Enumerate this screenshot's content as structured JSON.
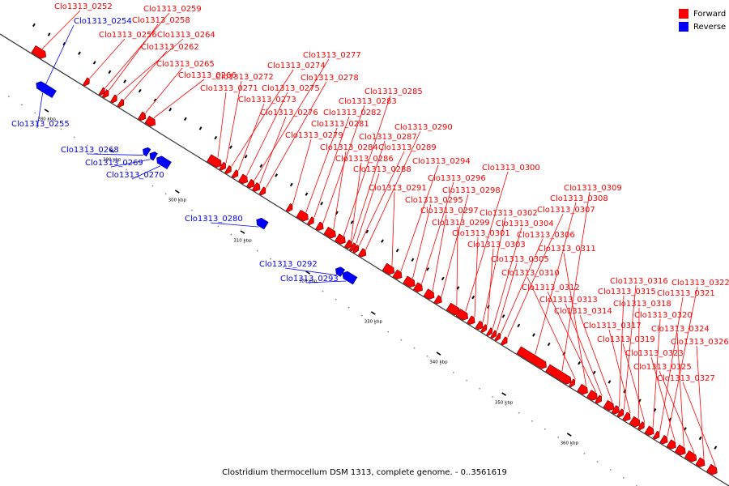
{
  "legend": {
    "forward": {
      "label": "Forward",
      "color": "#ff0000"
    },
    "reverse": {
      "label": "Reverse",
      "color": "#0000ff"
    }
  },
  "caption": "Clostridium thermocellum DSM 1313, complete genome. - 0..3561619",
  "axis": {
    "unit": "kbp",
    "ticks": [
      {
        "kbp": 280,
        "label": "280 kbp"
      },
      {
        "kbp": 290,
        "label": "290 kbp"
      },
      {
        "kbp": 300,
        "label": "300 kbp"
      },
      {
        "kbp": 310,
        "label": "310 kbp"
      },
      {
        "kbp": 320,
        "label": "320 kbp"
      },
      {
        "kbp": 330,
        "label": "330 kbp"
      },
      {
        "kbp": 340,
        "label": "340 kbp"
      },
      {
        "kbp": 350,
        "label": "350 kbp"
      },
      {
        "kbp": 360,
        "label": "360 kbp"
      }
    ]
  },
  "genes": [
    {
      "id": "Clo1313_0252",
      "strand": "forward"
    },
    {
      "id": "Clo1313_0254",
      "strand": "reverse"
    },
    {
      "id": "Clo1313_0255",
      "strand": "reverse"
    },
    {
      "id": "Clo1313_0256",
      "strand": "forward"
    },
    {
      "id": "Clo1313_0258",
      "strand": "forward"
    },
    {
      "id": "Clo1313_0259",
      "strand": "forward"
    },
    {
      "id": "Clo1313_0262",
      "strand": "forward"
    },
    {
      "id": "Clo1313_0264",
      "strand": "forward"
    },
    {
      "id": "Clo1313_0265",
      "strand": "forward"
    },
    {
      "id": "Clo1313_0266",
      "strand": "forward"
    },
    {
      "id": "Clo1313_0268",
      "strand": "reverse"
    },
    {
      "id": "Clo1313_0269",
      "strand": "reverse"
    },
    {
      "id": "Clo1313_0270",
      "strand": "reverse"
    },
    {
      "id": "Clo1313_0271",
      "strand": "forward"
    },
    {
      "id": "Clo1313_0272",
      "strand": "forward"
    },
    {
      "id": "Clo1313_0273",
      "strand": "forward"
    },
    {
      "id": "Clo1313_0274",
      "strand": "forward"
    },
    {
      "id": "Clo1313_0275",
      "strand": "forward"
    },
    {
      "id": "Clo1313_0276",
      "strand": "forward"
    },
    {
      "id": "Clo1313_0277",
      "strand": "forward"
    },
    {
      "id": "Clo1313_0278",
      "strand": "forward"
    },
    {
      "id": "Clo1313_0279",
      "strand": "forward"
    },
    {
      "id": "Clo1313_0280",
      "strand": "reverse"
    },
    {
      "id": "Clo1313_0281",
      "strand": "forward"
    },
    {
      "id": "Clo1313_0282",
      "strand": "forward"
    },
    {
      "id": "Clo1313_0283",
      "strand": "forward"
    },
    {
      "id": "Clo1313_0284",
      "strand": "forward"
    },
    {
      "id": "Clo1313_0285",
      "strand": "forward"
    },
    {
      "id": "Clo1313_0286",
      "strand": "forward"
    },
    {
      "id": "Clo1313_0287",
      "strand": "forward"
    },
    {
      "id": "Clo1313_0288",
      "strand": "forward"
    },
    {
      "id": "Clo1313_0289",
      "strand": "forward"
    },
    {
      "id": "Clo1313_0290",
      "strand": "forward"
    },
    {
      "id": "Clo1313_0291",
      "strand": "forward"
    },
    {
      "id": "Clo1313_0292",
      "strand": "reverse"
    },
    {
      "id": "Clo1313_0293",
      "strand": "reverse"
    },
    {
      "id": "Clo1313_0294",
      "strand": "forward"
    },
    {
      "id": "Clo1313_0295",
      "strand": "forward"
    },
    {
      "id": "Clo1313_0296",
      "strand": "forward"
    },
    {
      "id": "Clo1313_0297",
      "strand": "forward"
    },
    {
      "id": "Clo1313_0298",
      "strand": "forward"
    },
    {
      "id": "Clo1313_0299",
      "strand": "forward"
    },
    {
      "id": "Clo1313_0300",
      "strand": "forward"
    },
    {
      "id": "Clo1313_0301",
      "strand": "forward"
    },
    {
      "id": "Clo1313_0302",
      "strand": "forward"
    },
    {
      "id": "Clo1313_0303",
      "strand": "forward"
    },
    {
      "id": "Clo1313_0304",
      "strand": "forward"
    },
    {
      "id": "Clo1313_0305",
      "strand": "forward"
    },
    {
      "id": "Clo1313_0306",
      "strand": "forward"
    },
    {
      "id": "Clo1313_0307",
      "strand": "forward"
    },
    {
      "id": "Clo1313_0308",
      "strand": "forward"
    },
    {
      "id": "Clo1313_0309",
      "strand": "forward"
    },
    {
      "id": "Clo1313_0310",
      "strand": "forward"
    },
    {
      "id": "Clo1313_0311",
      "strand": "forward"
    },
    {
      "id": "Clo1313_0312",
      "strand": "forward"
    },
    {
      "id": "Clo1313_0313",
      "strand": "forward"
    },
    {
      "id": "Clo1313_0314",
      "strand": "forward"
    },
    {
      "id": "Clo1313_0315",
      "strand": "forward"
    },
    {
      "id": "Clo1313_0316",
      "strand": "forward"
    },
    {
      "id": "Clo1313_0317",
      "strand": "forward"
    },
    {
      "id": "Clo1313_0318",
      "strand": "forward"
    },
    {
      "id": "Clo1313_0319",
      "strand": "forward"
    },
    {
      "id": "Clo1313_0320",
      "strand": "forward"
    },
    {
      "id": "Clo1313_0321",
      "strand": "forward"
    },
    {
      "id": "Clo1313_0322",
      "strand": "forward"
    },
    {
      "id": "Clo1313_0323",
      "strand": "forward"
    },
    {
      "id": "Clo1313_0324",
      "strand": "forward"
    },
    {
      "id": "Clo1313_0325",
      "strand": "forward"
    },
    {
      "id": "Clo1313_0326",
      "strand": "forward"
    },
    {
      "id": "Clo1313_0327",
      "strand": "forward"
    }
  ]
}
